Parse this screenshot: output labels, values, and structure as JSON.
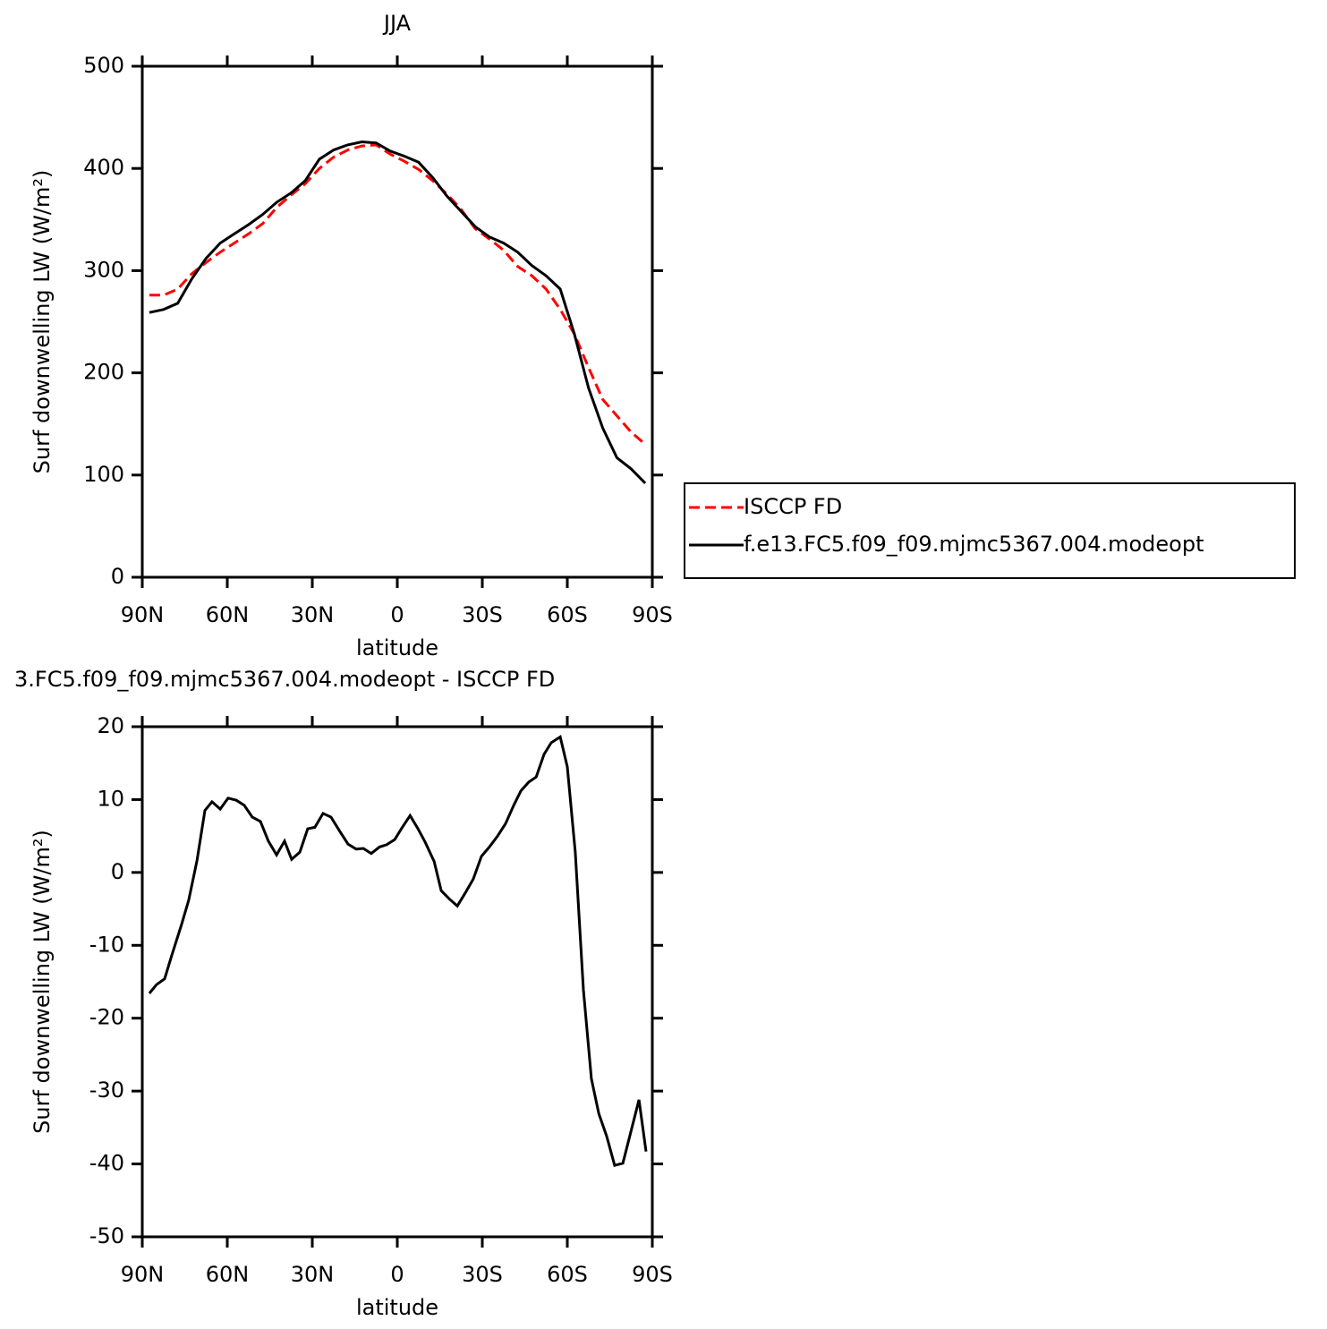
{
  "chart_data": [
    {
      "type": "line",
      "title": "JJA",
      "xlabel": "latitude",
      "ylabel": "Surf downwelling LW (W/m²)",
      "x": [
        87.5,
        82.5,
        77.5,
        72.5,
        67.5,
        62.5,
        57.5,
        52.5,
        47.5,
        42.5,
        37.5,
        32.5,
        27.5,
        22.5,
        17.5,
        12.5,
        7.5,
        2.5,
        -2.5,
        -7.5,
        -12.5,
        -17.5,
        -22.5,
        -27.5,
        -32.5,
        -37.5,
        -42.5,
        -47.5,
        -52.5,
        -57.5,
        -62.5,
        -67.5,
        -72.5,
        -77.5,
        -82.5,
        -87.5
      ],
      "xlim": [
        90,
        -90
      ],
      "xticks": [
        {
          "value": 90,
          "label": "90N"
        },
        {
          "value": 60,
          "label": "60N"
        },
        {
          "value": 30,
          "label": "30N"
        },
        0,
        {
          "value": -30,
          "label": "30S"
        },
        {
          "value": -60,
          "label": "60S"
        },
        {
          "value": -90,
          "label": "90S"
        }
      ],
      "ylim": [
        0,
        500
      ],
      "yticks": [
        0,
        100,
        200,
        300,
        400,
        500
      ],
      "legend": "right",
      "series": [
        {
          "name": "ISCCP FD",
          "color": "#ff0000",
          "dash": "dashed",
          "values": [
            276,
            276,
            282,
            297,
            308,
            318,
            327,
            336,
            346,
            362,
            374,
            385,
            400,
            411,
            418,
            422,
            423,
            414,
            407,
            399,
            388,
            375,
            360,
            341,
            331,
            320,
            304,
            295,
            282,
            262,
            238,
            205,
            174,
            158,
            142,
            130
          ]
        },
        {
          "name": "f.e13.FC5.f09_f09.mjmc5367.004.modeopt",
          "color": "#000000",
          "dash": "solid",
          "values": [
            259,
            262,
            268,
            292,
            312,
            327,
            336,
            345,
            355,
            367,
            376,
            388,
            409,
            418,
            423,
            426,
            425,
            417,
            412,
            406,
            391,
            373,
            358,
            343,
            333,
            327,
            318,
            305,
            295,
            282,
            238,
            185,
            146,
            117,
            106,
            92
          ]
        }
      ]
    },
    {
      "type": "line",
      "title": "3.FC5.f09_f09.mjmc5367.004.modeopt - ISCCP FD",
      "xlabel": "latitude",
      "ylabel": "Surf downwelling LW (W/m²)",
      "x": [
        87.5,
        85.0,
        82.1,
        79.6,
        76.1,
        73.6,
        70.7,
        67.9,
        65.4,
        62.5,
        59.7,
        56.8,
        54.0,
        51.2,
        48.3,
        45.5,
        42.6,
        39.8,
        37.3,
        34.4,
        31.6,
        29.1,
        26.2,
        23.4,
        20.2,
        17.4,
        14.5,
        12.0,
        9.2,
        6.3,
        3.8,
        0.9,
        -1.6,
        -4.5,
        -7.3,
        -9.8,
        -13.0,
        -15.5,
        -18.3,
        -21.2,
        -24.0,
        -26.8,
        -29.7,
        -32.5,
        -35.4,
        -38.2,
        -41.1,
        -43.6,
        -46.4,
        -49.0,
        -51.8,
        -54.3,
        -57.5,
        -60.0,
        -62.8,
        -65.7,
        -68.5,
        -71.1,
        -73.9,
        -76.7,
        -79.6,
        -85.3,
        -87.8
      ],
      "values": [
        -16.6,
        -15.4,
        -14.6,
        -11.4,
        -7.1,
        -3.8,
        1.6,
        8.5,
        9.7,
        8.7,
        10.2,
        9.9,
        9.2,
        7.6,
        7.0,
        4.3,
        2.4,
        4.3,
        1.8,
        2.8,
        6.0,
        6.2,
        8.1,
        7.6,
        5.6,
        3.9,
        3.2,
        3.3,
        2.6,
        3.5,
        3.8,
        4.5,
        6.1,
        7.8,
        6.0,
        4.2,
        1.5,
        -2.5,
        -3.6,
        -4.6,
        -2.8,
        -0.9,
        2.2,
        3.5,
        5.0,
        6.7,
        9.2,
        11.2,
        12.4,
        13.1,
        16.2,
        17.8,
        18.6,
        14.5,
        2.8,
        -16.1,
        -28.3,
        -33.1,
        -36.2,
        -40.2,
        -39.9,
        -31.2,
        -38.3
      ],
      "color": "#000000",
      "xlim": [
        90,
        -90
      ],
      "xticks": [
        {
          "value": 90,
          "label": "90N"
        },
        {
          "value": 60,
          "label": "60N"
        },
        {
          "value": 30,
          "label": "30N"
        },
        0,
        {
          "value": -30,
          "label": "30S"
        },
        {
          "value": -60,
          "label": "60S"
        },
        {
          "value": -90,
          "label": "90S"
        }
      ],
      "ylim": [
        -50,
        20
      ],
      "yticks": [
        -50,
        -40,
        -30,
        -20,
        -10,
        0,
        10,
        20
      ]
    }
  ]
}
